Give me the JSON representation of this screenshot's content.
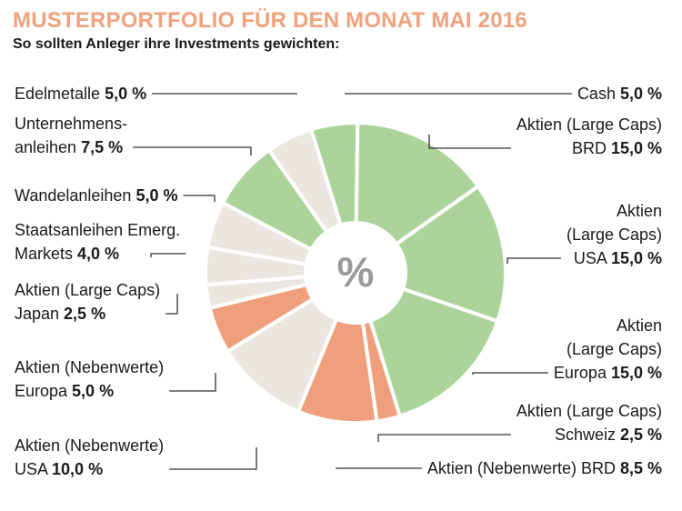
{
  "title": "MUSTERPORTFOLIO FÜR DEN MONAT MAI 2016",
  "subtitle": "So sollten Anleger ihre Investments gewichten:",
  "center_label": "%",
  "colors": {
    "green": "#acd49a",
    "beige": "#ebe7e0",
    "salmon": "#ef9f7b",
    "title": "#f0a27c",
    "center": "#9a9a9a",
    "leader": "#333333"
  },
  "chart_data": {
    "type": "pie",
    "title": "MUSTERPORTFOLIO FÜR DEN MONAT MAI 2016",
    "subtitle": "So sollten Anleger ihre Investments gewichten:",
    "unit": "%",
    "slices": [
      {
        "label": "Cash",
        "value": 5.0,
        "value_text": "5,0 %",
        "color": "green"
      },
      {
        "label": "Aktien (Large Caps) BRD",
        "value": 15.0,
        "value_text": "15,0 %",
        "color": "green"
      },
      {
        "label": "Aktien (Large Caps) USA",
        "value": 15.0,
        "value_text": "15,0 %",
        "color": "green"
      },
      {
        "label": "Aktien (Large Caps) Europa",
        "value": 15.0,
        "value_text": "15,0 %",
        "color": "green"
      },
      {
        "label": "Aktien (Large Caps) Schweiz",
        "value": 2.5,
        "value_text": "2,5 %",
        "color": "salmon"
      },
      {
        "label": "Aktien (Nebenwerte) BRD",
        "value": 8.5,
        "value_text": "8,5 %",
        "color": "salmon"
      },
      {
        "label": "Aktien (Nebenwerte) USA",
        "value": 10.0,
        "value_text": "10,0 %",
        "color": "beige"
      },
      {
        "label": "Aktien (Nebenwerte) Europa",
        "value": 5.0,
        "value_text": "5,0 %",
        "color": "salmon"
      },
      {
        "label": "Aktien (Large Caps) Japan",
        "value": 2.5,
        "value_text": "2,5 %",
        "color": "beige"
      },
      {
        "label": "Staatsanleihen Emerg. Markets",
        "value": 4.0,
        "value_text": "4,0 %",
        "color": "beige"
      },
      {
        "label": "Wandelanleihen",
        "value": 5.0,
        "value_text": "5,0 %",
        "color": "beige"
      },
      {
        "label": "Unternehmensanleihen",
        "value": 7.5,
        "value_text": "7,5 %",
        "color": "green"
      },
      {
        "label": "Edelmetalle",
        "value": 5.0,
        "value_text": "5,0 %",
        "color": "beige"
      }
    ],
    "labels": [
      {
        "lines": [
          "Cash"
        ],
        "value_text": "5,0 %"
      },
      {
        "lines": [
          "Aktien (Large Caps)",
          "BRD"
        ],
        "value_text": "15,0 %"
      },
      {
        "lines": [
          "Aktien",
          "(Large Caps)",
          "USA"
        ],
        "value_text": "15,0 %"
      },
      {
        "lines": [
          "Aktien",
          "(Large Caps)",
          "Europa"
        ],
        "value_text": "15,0 %"
      },
      {
        "lines": [
          "Aktien (Large Caps)",
          "Schweiz"
        ],
        "value_text": "2,5 %"
      },
      {
        "lines": [
          "Aktien (Nebenwerte) BRD"
        ],
        "value_text": "8,5 %"
      },
      {
        "lines": [
          "Aktien (Nebenwerte)",
          "USA"
        ],
        "value_text": "10,0 %"
      },
      {
        "lines": [
          "Aktien (Nebenwerte)",
          "Europa"
        ],
        "value_text": "5,0 %"
      },
      {
        "lines": [
          "Aktien (Large Caps)",
          "Japan"
        ],
        "value_text": "2,5 %"
      },
      {
        "lines": [
          "Staatsanleihen Emerg.",
          "Markets"
        ],
        "value_text": "4,0 %"
      },
      {
        "lines": [
          "Wandelanleihen"
        ],
        "value_text": "5,0 %"
      },
      {
        "lines": [
          "Unternehmens-",
          "anleihen"
        ],
        "value_text": "7,5 %"
      },
      {
        "lines": [
          "Edelmetalle"
        ],
        "value_text": "5,0 %"
      }
    ]
  }
}
